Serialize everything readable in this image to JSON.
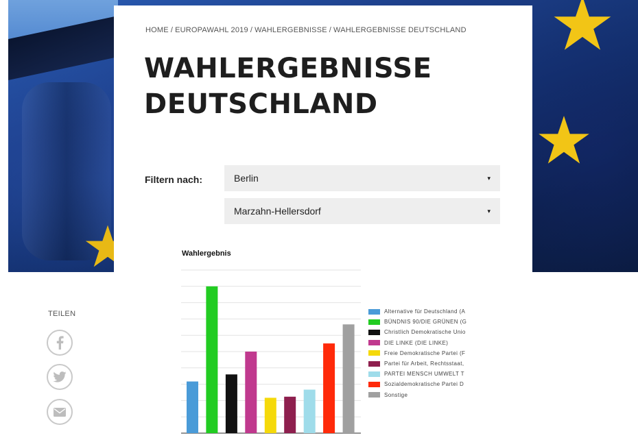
{
  "breadcrumb": [
    "HOME",
    "EUROPAWAHL 2019",
    "WAHLERGEBNISSE",
    "WAHLERGEBNISSE DEUTSCHLAND"
  ],
  "title": "WAHLERGEBNISSE DEUTSCHLAND",
  "filter": {
    "label": "Filtern nach:",
    "state_value": "Berlin",
    "district_value": "Marzahn-Hellersdorf",
    "caret": "▾"
  },
  "share": {
    "label": "TEILEN",
    "icons": [
      "facebook-icon",
      "twitter-icon",
      "mail-icon"
    ]
  },
  "colors": {
    "flag_blue": "#1d3f8a",
    "star_yellow": "#f2c516",
    "card_bg": "#ffffff",
    "select_bg": "#eeeeee",
    "share_border": "#c9c9c9"
  },
  "chart_data": {
    "type": "bar",
    "title": "Wahlergebnis",
    "grid": true,
    "ylim": [
      0,
      30
    ],
    "legend_position": "right",
    "series": [
      {
        "name": "Alternative für Deutschland (A",
        "color": "#4a9bd8",
        "value": 9.5
      },
      {
        "name": "BÜNDNIS 90/DIE GRÜNEN (G",
        "color": "#22cc22",
        "value": 27
      },
      {
        "name": "Christlich Demokratische Unio",
        "color": "#111111",
        "value": 10.8
      },
      {
        "name": "DIE LINKE (DIE LINKE)",
        "color": "#c0398e",
        "value": 15
      },
      {
        "name": "Freie Demokratische Partei (F",
        "color": "#f5d90a",
        "value": 6.5
      },
      {
        "name": "Partei für Arbeit, Rechtsstaat,",
        "color": "#8e1f4e",
        "value": 6.7
      },
      {
        "name": "PARTEI MENSCH UMWELT T",
        "color": "#9fdcea",
        "value": 8
      },
      {
        "name": "Sozialdemokratische Partei D",
        "color": "#ff2a0a",
        "value": 16.5
      },
      {
        "name": "Sonstige",
        "color": "#a0a0a0",
        "value": 20
      }
    ]
  }
}
